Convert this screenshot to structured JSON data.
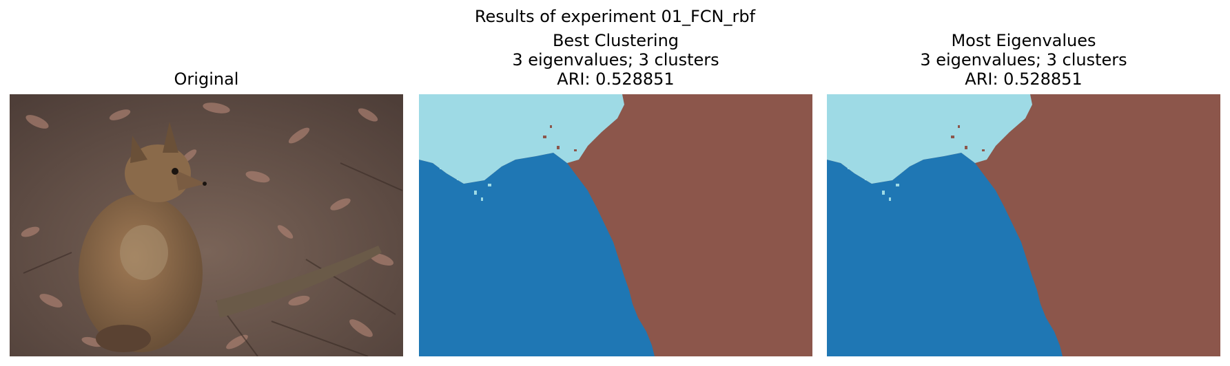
{
  "figure": {
    "suptitle": "Results of experiment 01_FCN_rbf"
  },
  "panels": [
    {
      "title_lines": [
        "Original"
      ],
      "content": "photograph"
    },
    {
      "title_lines": [
        "Best Clustering",
        "3 eigenvalues; 3 clusters",
        "ARI: 0.528851"
      ],
      "content": "segmentation-map"
    },
    {
      "title_lines": [
        "Most Eigenvalues",
        "3 eigenvalues; 3 clusters",
        "ARI: 0.528851"
      ],
      "content": "segmentation-map"
    }
  ],
  "colors": {
    "cluster_light_blue": "#9edae5",
    "cluster_blue": "#1f77b4",
    "cluster_brown": "#8c564b",
    "photo_ground": "#6e5a50",
    "photo_animal": "#8a6a4a"
  }
}
